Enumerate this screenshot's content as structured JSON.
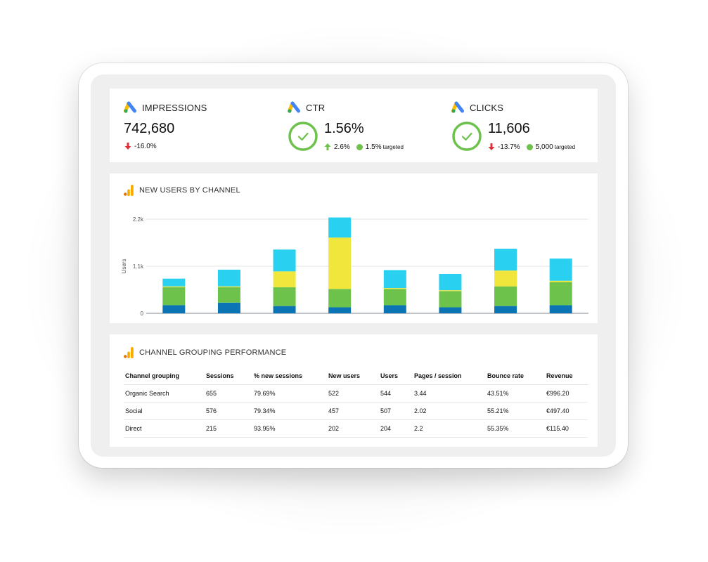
{
  "kpis": [
    {
      "title": "IMPRESSIONS",
      "value": "742,680",
      "change": "-16.0%",
      "direction": "down",
      "target": null
    },
    {
      "title": "CTR",
      "value": "1.56%",
      "change": "2.6%",
      "direction": "up",
      "target": {
        "value": "1.5%",
        "label": "targeted"
      }
    },
    {
      "title": "CLICKS",
      "value": "11,606",
      "change": "-13.7%",
      "direction": "down",
      "target": {
        "value": "5,000",
        "label": "targeted"
      }
    }
  ],
  "chart_section": {
    "title": "NEW USERS BY CHANNEL"
  },
  "chart_data": {
    "type": "bar",
    "stacked": true,
    "ylabel": "Users",
    "y_ticks": [
      "0",
      "1.1k",
      "2.2k"
    ],
    "ylim": [
      0,
      2200
    ],
    "grid": true,
    "categories": [
      "",
      "",
      "",
      "",
      "",
      "",
      "",
      ""
    ],
    "series": [
      {
        "color": "#0b74b5",
        "values": [
          190,
          250,
          170,
          140,
          190,
          140,
          170,
          190
        ]
      },
      {
        "color": "#6cc24a",
        "values": [
          420,
          360,
          440,
          430,
          380,
          380,
          460,
          540
        ]
      },
      {
        "color": "#f1e63c",
        "values": [
          20,
          20,
          370,
          1200,
          20,
          20,
          370,
          30
        ]
      },
      {
        "color": "#29d0ef",
        "values": [
          180,
          390,
          510,
          470,
          420,
          380,
          510,
          520
        ]
      }
    ]
  },
  "table_section": {
    "title": "CHANNEL GROUPING PERFORMANCE",
    "columns": [
      "Channel grouping",
      "Sessions",
      "% new sessions",
      "New users",
      "Users",
      "Pages / session",
      "Bounce rate",
      "Revenue"
    ],
    "rows": [
      [
        "Organic Search",
        "655",
        "79.69%",
        "522",
        "544",
        "3.44",
        "43.51%",
        "€996.20"
      ],
      [
        "Social",
        "576",
        "79.34%",
        "457",
        "507",
        "2.02",
        "55.21%",
        "€497.40"
      ],
      [
        "Direct",
        "215",
        "93.95%",
        "202",
        "204",
        "2.2",
        "55.35%",
        "€115.40"
      ]
    ]
  },
  "colors": {
    "up": "#6cc24a",
    "down": "#e0303a",
    "target": "#6cc24a",
    "gads_blue": "#4285f4",
    "gads_yellow": "#fbbc04",
    "gads_green": "#34a853",
    "ga_orange": "#f9ab00",
    "ga_dark": "#e37400"
  }
}
